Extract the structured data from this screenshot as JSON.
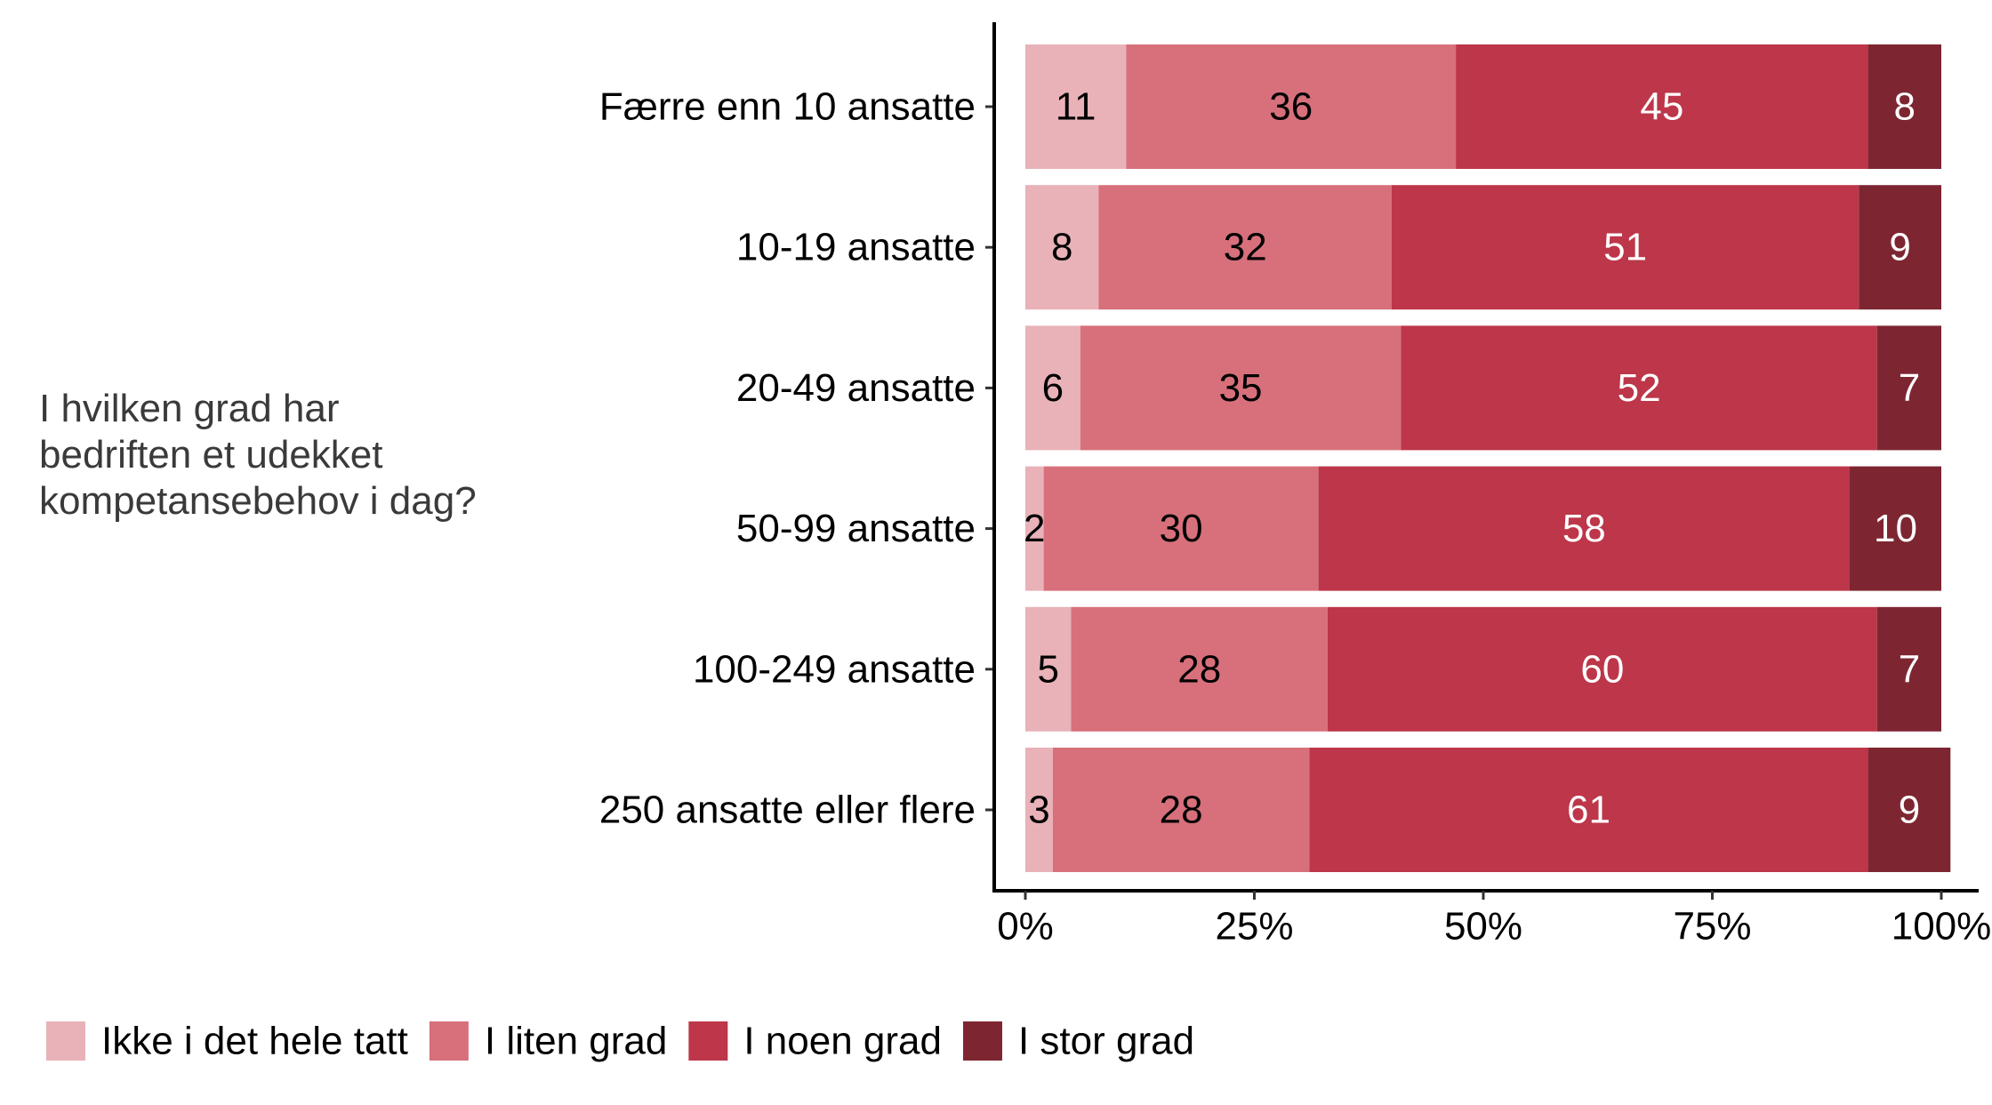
{
  "chart_data": {
    "type": "bar",
    "orientation": "horizontal",
    "stacked": "percent",
    "title": "",
    "ylabel": "I hvilken grad har bedriften et udekket kompetansebehov i dag?",
    "ylabel_lines": [
      "I hvilken grad har",
      "bedriften et udekket",
      "kompetansebehov i dag?"
    ],
    "xlabel": "",
    "xlim": [
      0,
      100
    ],
    "xticks": [
      0,
      25,
      50,
      75,
      100
    ],
    "xtick_labels": [
      "0%",
      "25%",
      "50%",
      "75%",
      "100%"
    ],
    "categories": [
      "Færre enn 10 ansatte",
      "10-19 ansatte",
      "20-49 ansatte",
      "50-99 ansatte",
      "100-249 ansatte",
      "250 ansatte eller flere"
    ],
    "series": [
      {
        "name": "Ikke i det hele tatt",
        "color": "#E8B2B8",
        "label_color": "#000000",
        "values": [
          11,
          8,
          6,
          2,
          5,
          3
        ]
      },
      {
        "name": "I liten grad",
        "color": "#D7707B",
        "label_color": "#000000",
        "values": [
          36,
          32,
          35,
          30,
          28,
          28
        ]
      },
      {
        "name": "I noen grad",
        "color": "#BD3649",
        "label_color": "#FFFFFF",
        "values": [
          45,
          51,
          52,
          58,
          60,
          61
        ]
      },
      {
        "name": "I stor grad",
        "color": "#7D2631",
        "label_color": "#FFFFFF",
        "values": [
          8,
          9,
          7,
          10,
          7,
          9
        ]
      }
    ],
    "legend_position": "bottom",
    "grid": false
  }
}
